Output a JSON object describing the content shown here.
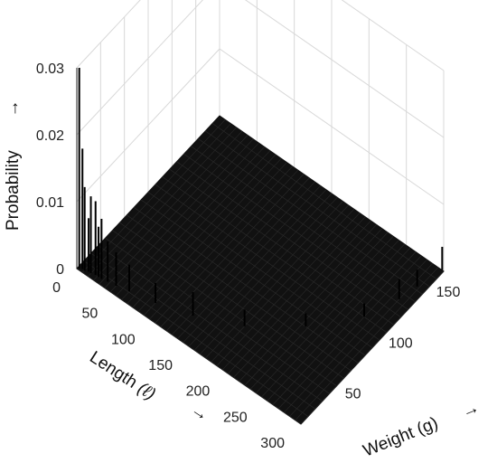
{
  "chart_data": {
    "type": "surface",
    "xlabel_text": "Length",
    "xlabel_symbol": "(ℓ)",
    "ylabel": "Weight (g)",
    "zlabel": "Probability",
    "arrow": "→",
    "x_ticks": [
      "0",
      "50",
      "100",
      "150",
      "200",
      "250",
      "300"
    ],
    "y_ticks": [
      "50",
      "100",
      "150"
    ],
    "z_ticks": [
      "0",
      "0.01",
      "0.02",
      "0.03"
    ],
    "xlim": [
      0,
      300
    ],
    "ylim": [
      0,
      150
    ],
    "zlim": [
      0,
      0.03
    ],
    "grid": true,
    "surface_color": "#111111",
    "spikes": [
      {
        "length": 2,
        "weight": 1,
        "p": 0.03
      },
      {
        "length": 5,
        "weight": 2,
        "p": 0.018
      },
      {
        "length": 8,
        "weight": 2,
        "p": 0.0125
      },
      {
        "length": 12,
        "weight": 3,
        "p": 0.008
      },
      {
        "length": 15,
        "weight": 3,
        "p": 0.0115
      },
      {
        "length": 20,
        "weight": 4,
        "p": 0.011
      },
      {
        "length": 24,
        "weight": 4,
        "p": 0.0075
      },
      {
        "length": 28,
        "weight": 4,
        "p": 0.009
      },
      {
        "length": 35,
        "weight": 5,
        "p": 0.006
      },
      {
        "length": 45,
        "weight": 6,
        "p": 0.005
      },
      {
        "length": 60,
        "weight": 8,
        "p": 0.004
      },
      {
        "length": 90,
        "weight": 12,
        "p": 0.003
      },
      {
        "length": 130,
        "weight": 20,
        "p": 0.0035
      },
      {
        "length": 180,
        "weight": 35,
        "p": 0.0025
      },
      {
        "length": 230,
        "weight": 60,
        "p": 0.002
      },
      {
        "length": 270,
        "weight": 90,
        "p": 0.002
      },
      {
        "length": 285,
        "weight": 115,
        "p": 0.003
      },
      {
        "length": 290,
        "weight": 130,
        "p": 0.0025
      },
      {
        "length": 298,
        "weight": 150,
        "p": 0.0035
      }
    ]
  }
}
